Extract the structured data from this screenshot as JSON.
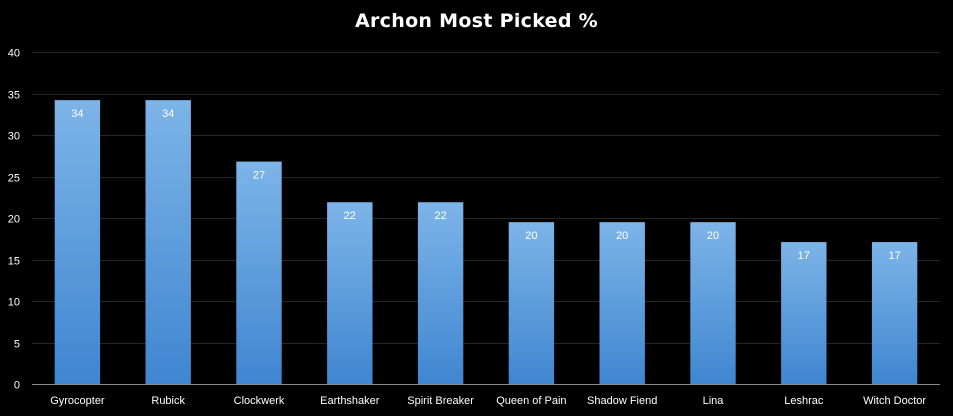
{
  "chart_data": {
    "type": "bar",
    "title": "Archon Most Picked %",
    "xlabel": "",
    "ylabel": "",
    "categories": [
      "Gyrocopter",
      "Rubick",
      "Clockwerk",
      "Earthshaker",
      "Spirit Breaker",
      "Queen of Pain",
      "Shadow Fiend",
      "Lina",
      "Leshrac",
      "Witch Doctor"
    ],
    "values": [
      34,
      34,
      27,
      22,
      22,
      20,
      20,
      20,
      17,
      17
    ],
    "value_heights": [
      34.2,
      34.2,
      26.8,
      21.9,
      21.9,
      19.5,
      19.5,
      19.5,
      17.1,
      17.1
    ],
    "ylim": [
      0,
      40
    ],
    "yticks": [
      0,
      5,
      10,
      15,
      20,
      25,
      30,
      35,
      40
    ],
    "grid": true,
    "legend": "none",
    "colors": {
      "background": "#000000",
      "bar_top": "#7db4e8",
      "bar_bottom": "#3f86d0",
      "gridline": "#262626",
      "axis": "#8c8c8c",
      "text": "#ffffff"
    }
  }
}
